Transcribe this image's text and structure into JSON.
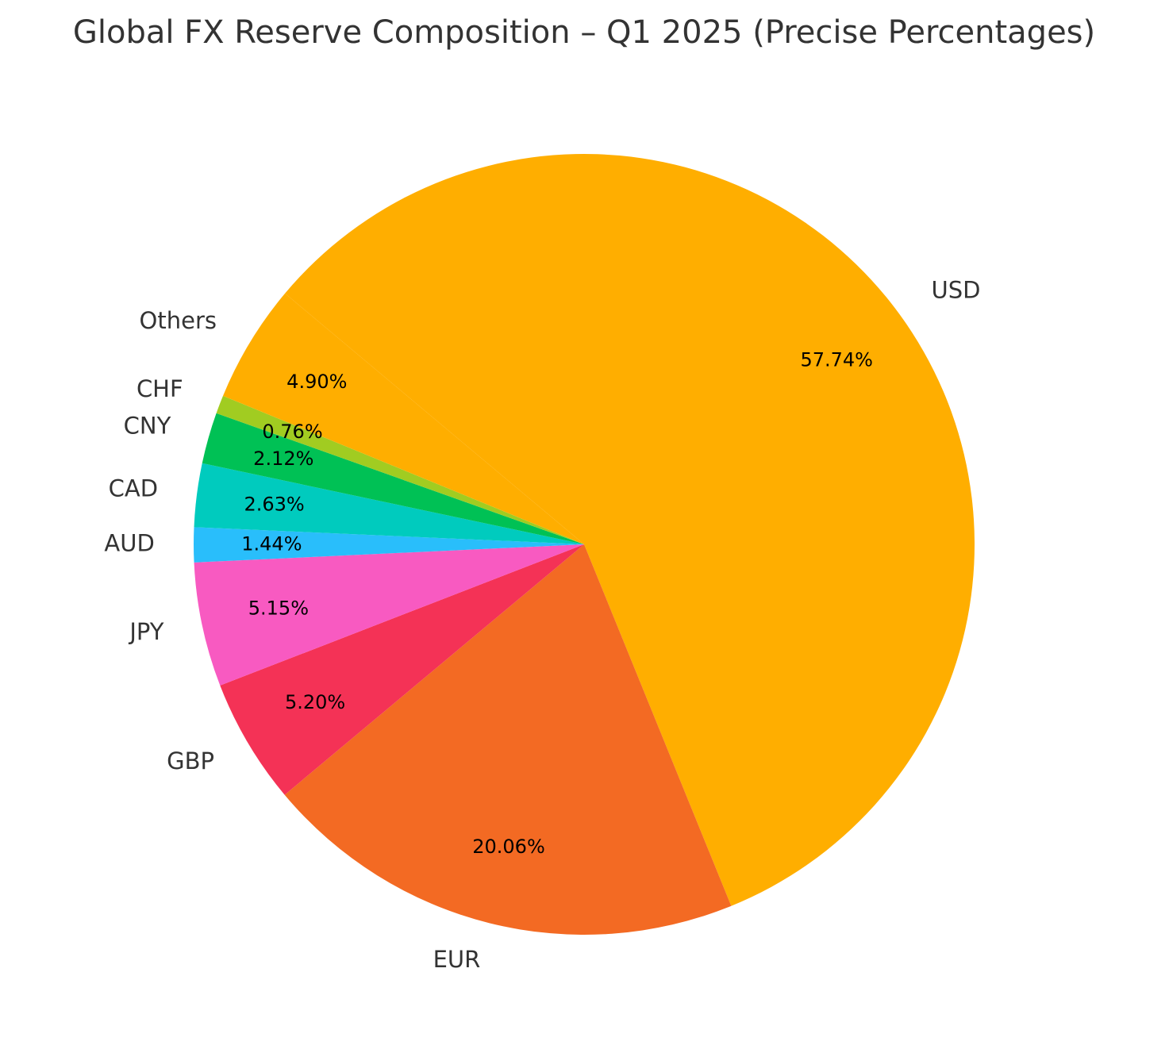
{
  "chart_data": {
    "type": "pie",
    "title": "Global FX Reserve Composition – Q1 2025 (Precise Percentages)",
    "start_angle_deg": 140,
    "direction": "clockwise",
    "slices": [
      {
        "label": "USD",
        "value": 57.74,
        "pct_label": "57.74%",
        "color": "#FFAE00"
      },
      {
        "label": "EUR",
        "value": 20.06,
        "pct_label": "20.06%",
        "color": "#F36A23"
      },
      {
        "label": "GBP",
        "value": 5.2,
        "pct_label": "5.20%",
        "color": "#F43256"
      },
      {
        "label": "JPY",
        "value": 5.15,
        "pct_label": "5.15%",
        "color": "#F85AC1"
      },
      {
        "label": "AUD",
        "value": 1.44,
        "pct_label": "1.44%",
        "color": "#29BEFB"
      },
      {
        "label": "CAD",
        "value": 2.63,
        "pct_label": "2.63%",
        "color": "#00CBBE"
      },
      {
        "label": "CNY",
        "value": 2.12,
        "pct_label": "2.12%",
        "color": "#00C155"
      },
      {
        "label": "CHF",
        "value": 0.76,
        "pct_label": "0.76%",
        "color": "#A1CC21"
      },
      {
        "label": "Others",
        "value": 4.9,
        "pct_label": "4.90%",
        "color": "#FFAE00"
      }
    ]
  }
}
